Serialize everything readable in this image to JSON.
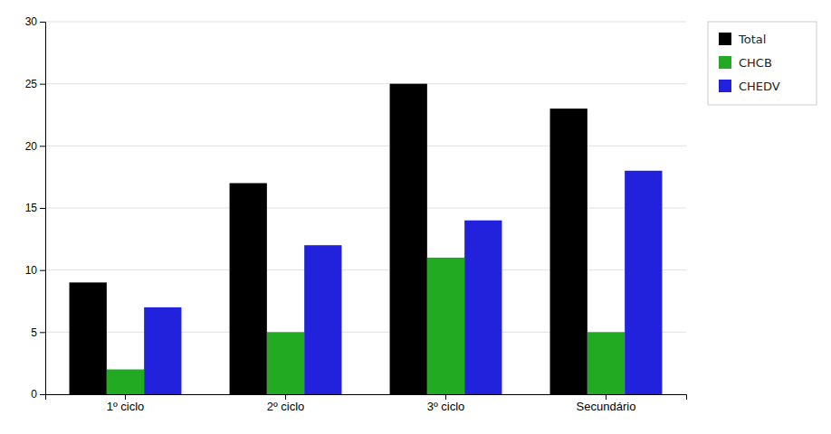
{
  "chart_data": {
    "type": "bar",
    "categories": [
      "1º ciclo",
      "2º ciclo",
      "3º ciclo",
      "Secundário"
    ],
    "series": [
      {
        "name": "Total",
        "color": "#000000",
        "values": [
          9,
          17,
          25,
          23
        ]
      },
      {
        "name": "CHCB",
        "color": "#22aa22",
        "values": [
          2,
          5,
          11,
          5
        ]
      },
      {
        "name": "CHEDV",
        "color": "#2222dd",
        "values": [
          7,
          12,
          14,
          18
        ]
      }
    ],
    "ylim": [
      0,
      30
    ],
    "yticks": [
      0,
      5,
      10,
      15,
      20,
      25,
      30
    ],
    "grid": true,
    "legend": "right"
  }
}
